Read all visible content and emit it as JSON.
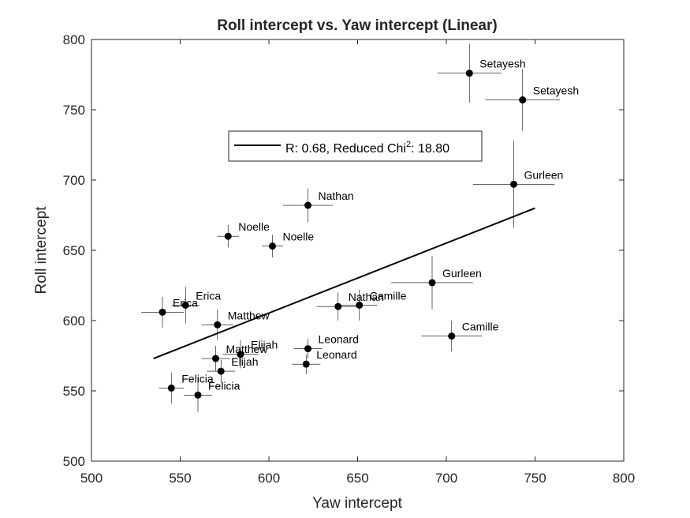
{
  "chart_data": {
    "type": "scatter",
    "title": "Roll intercept vs. Yaw intercept (Linear)",
    "xlabel": "Yaw intercept",
    "ylabel": "Roll intercept",
    "xlim": [
      500,
      800
    ],
    "ylim": [
      500,
      800
    ],
    "xticks": [
      500,
      550,
      600,
      650,
      700,
      750,
      800
    ],
    "yticks": [
      500,
      550,
      600,
      650,
      700,
      750,
      800
    ],
    "grid": false,
    "legend": {
      "placement": "top-center",
      "entries": [
        {
          "text_main": "R: 0.68, Reduced Chi",
          "text_sup": "2",
          "text_tail": ": 18.80"
        }
      ]
    },
    "fit_line": {
      "x": [
        535,
        750
      ],
      "y": [
        573,
        680
      ]
    },
    "points": [
      {
        "label": "Setayesh",
        "x": 713,
        "y": 776,
        "xerr": 18,
        "yerr": 21
      },
      {
        "label": "Setayesh",
        "x": 743,
        "y": 757,
        "xerr": 21,
        "yerr": 22
      },
      {
        "label": "Gurleen",
        "x": 738,
        "y": 697,
        "xerr": 23,
        "yerr": 31
      },
      {
        "label": "Gurleen",
        "x": 692,
        "y": 627,
        "xerr": 23,
        "yerr": 19
      },
      {
        "label": "Nathan",
        "x": 622,
        "y": 682,
        "xerr": 14,
        "yerr": 12
      },
      {
        "label": "Nathan",
        "x": 639,
        "y": 610,
        "xerr": 12,
        "yerr": 10
      },
      {
        "label": "Noelle",
        "x": 577,
        "y": 660,
        "xerr": 6,
        "yerr": 8
      },
      {
        "label": "Noelle",
        "x": 602,
        "y": 653,
        "xerr": 6,
        "yerr": 8
      },
      {
        "label": "Camille",
        "x": 651,
        "y": 611,
        "xerr": 10,
        "yerr": 11
      },
      {
        "label": "Camille",
        "x": 703,
        "y": 589,
        "xerr": 17,
        "yerr": 11
      },
      {
        "label": "Erica",
        "x": 553,
        "y": 611,
        "xerr": 8,
        "yerr": 13
      },
      {
        "label": "Erica",
        "x": 540,
        "y": 606,
        "xerr": 12,
        "yerr": 11
      },
      {
        "label": "Matthew",
        "x": 571,
        "y": 597,
        "xerr": 9,
        "yerr": 11
      },
      {
        "label": "Matthew",
        "x": 570,
        "y": 573,
        "xerr": 8,
        "yerr": 9
      },
      {
        "label": "Elijah",
        "x": 584,
        "y": 576,
        "xerr": 10,
        "yerr": 10
      },
      {
        "label": "Elijah",
        "x": 573,
        "y": 564,
        "xerr": 8,
        "yerr": 8
      },
      {
        "label": "Leonard",
        "x": 622,
        "y": 580,
        "xerr": 8,
        "yerr": 7
      },
      {
        "label": "Leonard",
        "x": 621,
        "y": 569,
        "xerr": 8,
        "yerr": 7
      },
      {
        "label": "Felicia",
        "x": 545,
        "y": 552,
        "xerr": 7,
        "yerr": 11
      },
      {
        "label": "Felicia",
        "x": 560,
        "y": 547,
        "xerr": 8,
        "yerr": 12
      }
    ]
  }
}
